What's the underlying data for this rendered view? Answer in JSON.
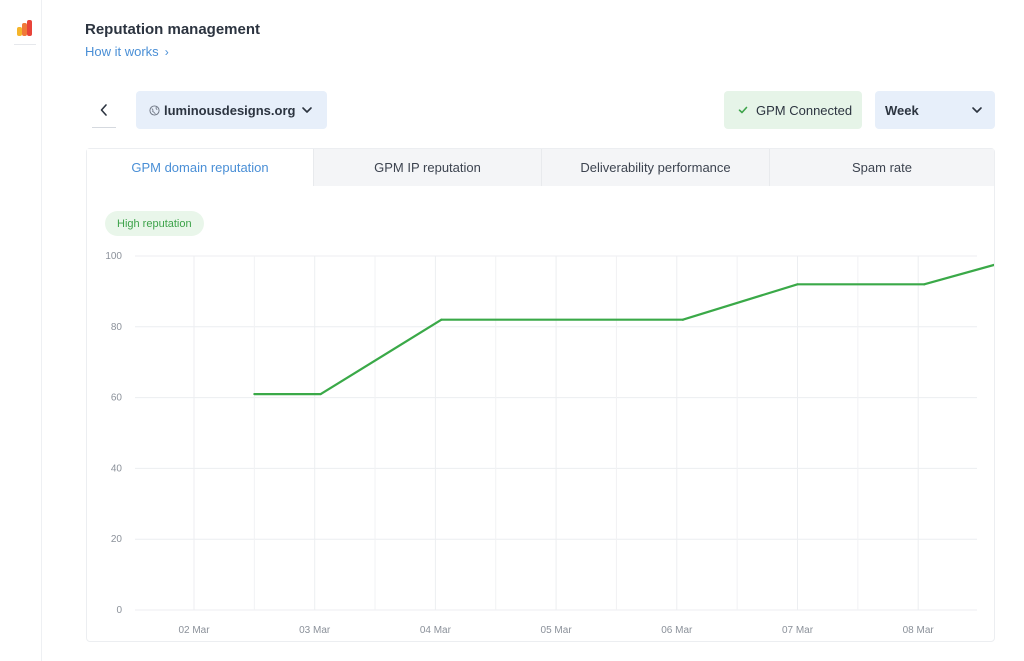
{
  "header": {
    "title": "Reputation management",
    "how_it_works": "How it works",
    "how_chevron": "›"
  },
  "toolbar": {
    "domain": "luminousdesigns.org",
    "status": "GPM Connected",
    "period": "Week"
  },
  "tabs": [
    {
      "label": "GPM domain reputation",
      "active": true
    },
    {
      "label": "GPM IP reputation",
      "active": false
    },
    {
      "label": "Deliverability performance",
      "active": false
    },
    {
      "label": "Spam rate",
      "active": false
    }
  ],
  "reputation_badge": "High reputation",
  "colors": {
    "accent": "#4a8fd6",
    "line": "#3aa948",
    "status_green": "#3da34a"
  },
  "chart_data": {
    "type": "line",
    "x": [
      "02 Mar",
      "03 Mar",
      "04 Mar",
      "05 Mar",
      "06 Mar",
      "07 Mar",
      "08 Mar"
    ],
    "y_ticks": [
      0,
      20,
      40,
      60,
      80,
      100
    ],
    "ylim": [
      0,
      100
    ],
    "grid": true,
    "series": [
      {
        "points": [
          {
            "x": 1.5,
            "y": 61
          },
          {
            "x": 2.05,
            "y": 61
          },
          {
            "x": 3.05,
            "y": 82
          },
          {
            "x": 5.05,
            "y": 82
          },
          {
            "x": 6.0,
            "y": 92
          },
          {
            "x": 7.05,
            "y": 92
          },
          {
            "x": 8.0,
            "y": 101
          },
          {
            "x": 8.5,
            "y": 101
          }
        ]
      }
    ]
  }
}
